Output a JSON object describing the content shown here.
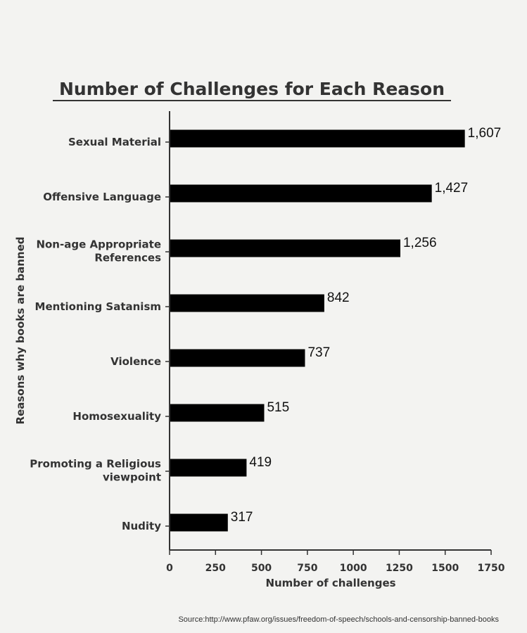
{
  "chart_data": {
    "type": "bar",
    "orientation": "horizontal",
    "title": "Number of Challenges for Each Reason",
    "xlabel": "Number of challenges",
    "ylabel": "Reasons why books are banned",
    "categories": [
      [
        "Sexual Material"
      ],
      [
        "Offensive Language"
      ],
      [
        "Non-age Appropriate",
        "References"
      ],
      [
        "Mentioning Satanism"
      ],
      [
        "Violence"
      ],
      [
        "Homosexuality"
      ],
      [
        "Promoting a Religious",
        "viewpoint"
      ],
      [
        "Nudity"
      ]
    ],
    "values": [
      1607,
      1427,
      1256,
      842,
      737,
      515,
      419,
      317
    ],
    "data_labels": [
      "1,607",
      "1,427",
      "1,256",
      "842",
      "737",
      "515",
      "419",
      "317"
    ],
    "xlim": [
      0,
      1750
    ],
    "xticks": [
      0,
      250,
      500,
      750,
      1000,
      1250,
      1500,
      1750
    ],
    "xtick_labels": [
      "0",
      "250",
      "500",
      "750",
      "1000",
      "1250",
      "1500",
      "1750"
    ],
    "grid": false,
    "bar_color": "#000000",
    "source": "Source:http://www.pfaw.org/issues/freedom-of-speech/schools-and-censorship-banned-books"
  }
}
